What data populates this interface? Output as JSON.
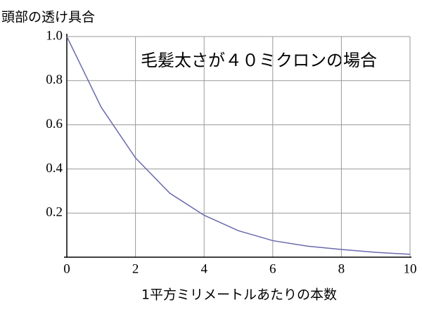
{
  "chart_data": {
    "type": "line",
    "y_label": "頭部の透け具合",
    "x_label": "1平方ミリメートルあたりの本数",
    "annotation": "毛髪太さが４０ミクロンの場合",
    "x": [
      0,
      1,
      2,
      3,
      4,
      5,
      6,
      7,
      8,
      9,
      10
    ],
    "series": [
      {
        "color": "#6a6aae",
        "values": [
          1.0,
          0.68,
          0.45,
          0.29,
          0.19,
          0.12,
          0.075,
          0.05,
          0.035,
          0.022,
          0.013
        ]
      }
    ],
    "xlim": [
      0,
      10
    ],
    "ylim": [
      0,
      1
    ],
    "xticks": [
      0,
      2,
      4,
      6,
      8,
      10
    ],
    "yticks": [
      0.2,
      0.4,
      0.6,
      0.8,
      {
        "value": 1,
        "label": "1.0"
      }
    ],
    "grid": true
  }
}
